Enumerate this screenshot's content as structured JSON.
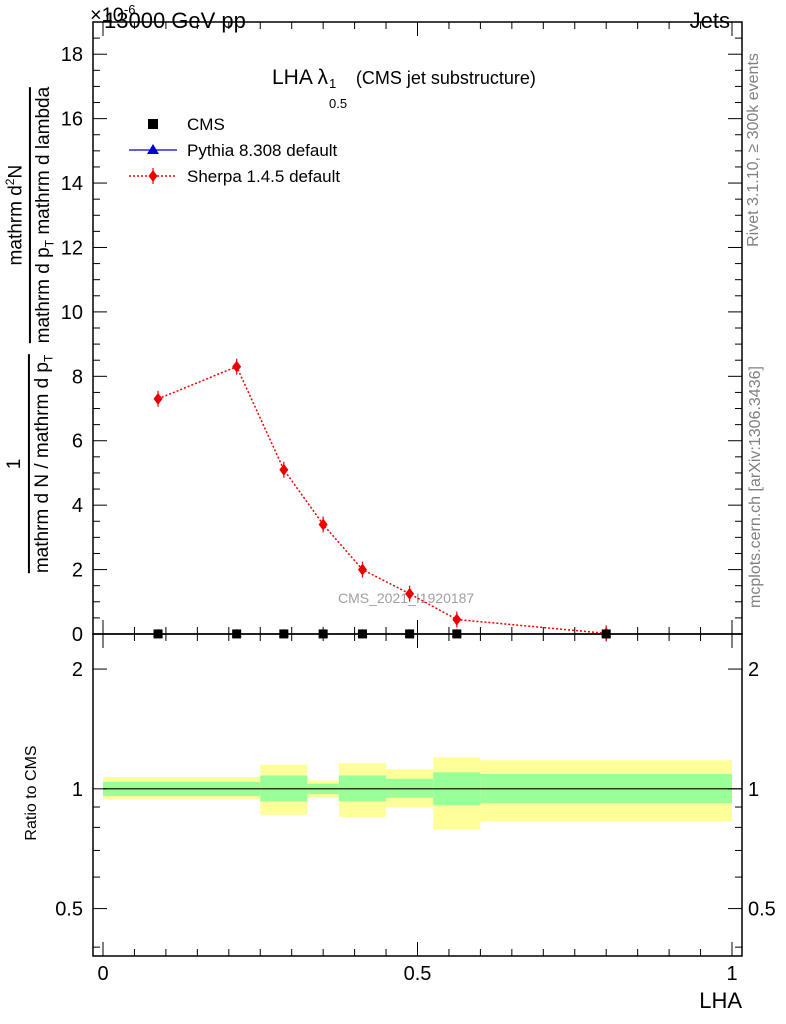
{
  "header": {
    "left": "13000 GeV pp",
    "right": "Jets",
    "multiplier": "×10",
    "multiplier_exp": "-6"
  },
  "side_labels": {
    "rivet": "Rivet 3.1.10, ≥ 300k events",
    "mcplots": "mcplots.cern.ch [arXiv:1306.3436]"
  },
  "watermark": "CMS_2021_I1920187",
  "chart_data": [
    {
      "type": "scatter",
      "title_main": "LHA λ",
      "title_sup": "1",
      "title_sub": "0.5",
      "title_rest": "(CMS jet substructure)",
      "ylabel_top_num": "1",
      "ylabel_top_den": "mathrm d N / mathrm d p",
      "ylabel_top_den_sub": "T",
      "ylabel_bottom_num": "mathrm d",
      "ylabel_bottom_num_sup": "2",
      "ylabel_bottom_num_rest": "N",
      "ylabel_bottom_den": "mathrm d p",
      "ylabel_bottom_den_sub": "T",
      "ylabel_bottom_den_rest": "mathrm d lambda",
      "xlim": [
        0,
        1
      ],
      "ylim": [
        0,
        19
      ],
      "yticks": [
        0,
        2,
        4,
        6,
        8,
        10,
        12,
        14,
        16,
        18
      ],
      "ytick_labels": [
        "0",
        "2",
        "4",
        "6",
        "8",
        "10",
        "12",
        "14",
        "16",
        "18"
      ],
      "legend_position": "top-left",
      "series": [
        {
          "name": "CMS",
          "marker": "square",
          "color": "#000000",
          "x": [
            0.0875,
            0.2125,
            0.2875,
            0.35,
            0.4125,
            0.4875,
            0.5625,
            0.8
          ],
          "y": [
            0.002,
            0.002,
            0.002,
            0.002,
            0.002,
            0.002,
            0.002,
            0.001
          ]
        },
        {
          "name": "Pythia 8.308 default",
          "marker": "triangle",
          "color": "#0000cc",
          "x": [
            0.0875,
            0.2125,
            0.2875,
            0.35,
            0.4125,
            0.4875,
            0.5625,
            0.8
          ],
          "y": [
            0.002,
            0.002,
            0.002,
            0.002,
            0.002,
            0.002,
            0.002,
            0.001
          ]
        },
        {
          "name": "Sherpa 1.4.5 default",
          "marker": "diamond",
          "line": "dotted",
          "color": "#ee0000",
          "x": [
            0.0875,
            0.2125,
            0.2875,
            0.35,
            0.4125,
            0.4875,
            0.5625,
            0.8
          ],
          "y": [
            7.3,
            8.3,
            5.1,
            3.4,
            2.0,
            1.25,
            0.45,
            0.02
          ]
        }
      ]
    },
    {
      "type": "area",
      "ylabel": "Ratio to CMS",
      "xlabel": "LHA",
      "xlim": [
        0,
        1
      ],
      "ylim": [
        0.38,
        2.45
      ],
      "log_y": true,
      "yticks": [
        0.5,
        1,
        2
      ],
      "ytick_labels": [
        "0.5",
        "1",
        "2"
      ],
      "xticks": [
        0,
        0.5,
        1
      ],
      "xtick_labels": [
        "0",
        "0.5",
        "1"
      ],
      "band_colors": {
        "inner": "#99ff99",
        "outer": "#ffff99"
      },
      "bins": [
        {
          "lo": 0.0,
          "hi": 0.25,
          "inner": [
            0.96,
            1.04
          ],
          "outer": [
            0.94,
            1.07
          ]
        },
        {
          "lo": 0.25,
          "hi": 0.325,
          "inner": [
            0.93,
            1.08
          ],
          "outer": [
            0.86,
            1.15
          ]
        },
        {
          "lo": 0.325,
          "hi": 0.375,
          "inner": [
            0.97,
            1.03
          ],
          "outer": [
            0.95,
            1.05
          ]
        },
        {
          "lo": 0.375,
          "hi": 0.45,
          "inner": [
            0.93,
            1.08
          ],
          "outer": [
            0.85,
            1.16
          ]
        },
        {
          "lo": 0.45,
          "hi": 0.525,
          "inner": [
            0.95,
            1.06
          ],
          "outer": [
            0.9,
            1.12
          ]
        },
        {
          "lo": 0.525,
          "hi": 0.6,
          "inner": [
            0.91,
            1.1
          ],
          "outer": [
            0.79,
            1.2
          ]
        },
        {
          "lo": 0.6,
          "hi": 1.0,
          "inner": [
            0.92,
            1.09
          ],
          "outer": [
            0.83,
            1.18
          ]
        }
      ]
    }
  ]
}
